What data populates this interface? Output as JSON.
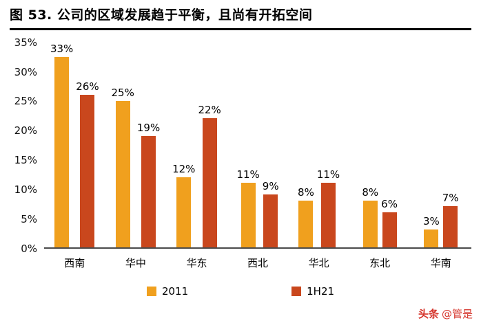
{
  "header": {
    "title": "图 53. 公司的区域发展趋于平衡，且尚有开拓空间"
  },
  "chart_data": {
    "type": "bar",
    "title": "图 53. 公司的区域发展趋于平衡，且尚有开拓空间",
    "categories": [
      "西南",
      "华中",
      "华东",
      "西北",
      "华北",
      "东北",
      "华南"
    ],
    "series": [
      {
        "name": "2011",
        "color": "#F0A01E",
        "values": [
          33,
          25,
          12,
          11,
          8,
          8,
          3
        ]
      },
      {
        "name": "1H21",
        "color": "#C9471D",
        "values": [
          26,
          19,
          22,
          9,
          11,
          6,
          7
        ]
      }
    ],
    "y_ticks": [
      "0%",
      "5%",
      "10%",
      "15%",
      "20%",
      "25%",
      "30%",
      "35%"
    ],
    "ylim": [
      0,
      35
    ],
    "y_tick_step": 5,
    "data_label_format": "{v}%",
    "grid": false,
    "legend_position": "bottom"
  },
  "watermark": {
    "brand": "头条",
    "handle": "@管是"
  }
}
